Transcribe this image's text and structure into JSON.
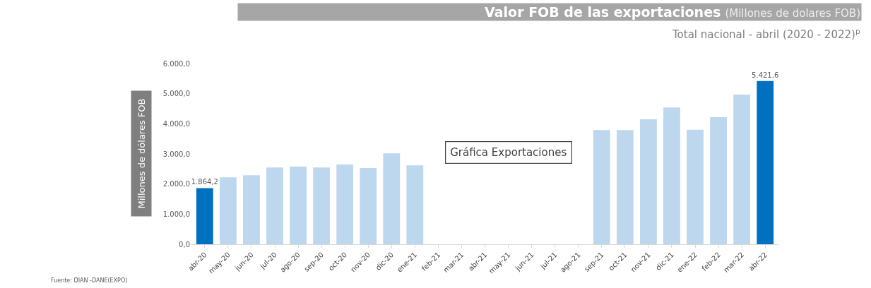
{
  "chart_data": {
    "type": "bar",
    "title": "Valor FOB de las exportaciones",
    "subtitle": "(Millones de dolares FOB)",
    "ylabel": "Millones de dólares FOB",
    "annotations": [
      "Total nacional - abril (2020 - 2022)$^{p}$",
      "Gráfica Exportaciones",
      "Fuente: DIAN -DANE(EXPO)"
    ],
    "categories": [
      "abr-20",
      "may-20",
      "jun-20",
      "jul-20",
      "ago-20",
      "sep-20",
      "oct-20",
      "nov-20",
      "dic-20",
      "ene-21",
      "feb-21",
      "mar-21",
      "abr-21",
      "may-21",
      "jun-21",
      "jul-21",
      "ago-21",
      "sep-21",
      "oct-21",
      "nov-21",
      "dic-21",
      "ene-22",
      "feb-22",
      "mar-22",
      "abr-22"
    ],
    "values": [
      1864.2,
      2220,
      2290,
      2550,
      2580,
      2550,
      2650,
      2530,
      3020,
      2620,
      null,
      null,
      null,
      null,
      null,
      null,
      null,
      3790,
      3790,
      4150,
      4540,
      3800,
      4220,
      4970,
      5421.6
    ],
    "colors": [
      "#0070c0",
      "#bdd7ee",
      "#bdd7ee",
      "#bdd7ee",
      "#bdd7ee",
      "#bdd7ee",
      "#bdd7ee",
      "#bdd7ee",
      "#bdd7ee",
      "#bdd7ee",
      "#bdd7ee",
      "#bdd7ee",
      "#0070c0",
      "#bdd7ee",
      "#bdd7ee",
      "#bdd7ee",
      "#bdd7ee",
      "#bdd7ee",
      "#bdd7ee",
      "#bdd7ee",
      "#bdd7ee",
      "#bdd7ee",
      "#bdd7ee",
      "#bdd7ee",
      "#0070c0"
    ],
    "value_labels": [
      "1.864,2",
      null,
      null,
      null,
      null,
      null,
      null,
      null,
      null,
      null,
      null,
      null,
      null,
      null,
      null,
      null,
      null,
      null,
      null,
      null,
      null,
      null,
      null,
      null,
      "5.421,6"
    ],
    "ylim": [
      0,
      6000
    ],
    "yticks": [
      {
        "value": 0,
        "label": "0,0"
      },
      {
        "value": 1000,
        "label": "1.000,0"
      },
      {
        "value": 2000,
        "label": "2.000,0"
      },
      {
        "value": 3000,
        "label": "3.000,0"
      },
      {
        "value": 4000,
        "label": "4.000,0"
      },
      {
        "value": 5000,
        "label": "5.000,0"
      },
      {
        "value": 6000,
        "label": "6.000,0"
      }
    ],
    "grid": false,
    "legend": false
  }
}
